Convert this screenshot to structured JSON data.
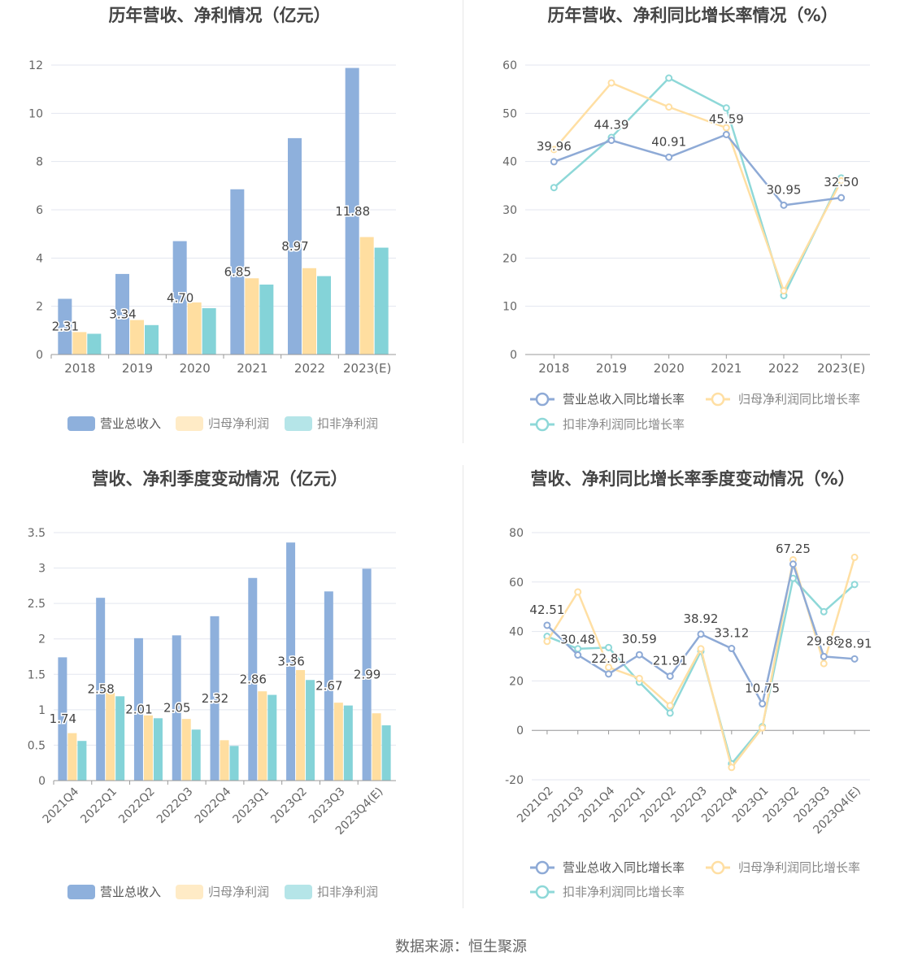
{
  "source_label": "数据来源：恒生聚源",
  "colors": {
    "revenue": "#8eb0dc",
    "net_profit": "#ffdea0",
    "deducted_profit": "#84d3d8"
  },
  "chart_data": [
    {
      "type": "bar",
      "title": "历年营收、净利情况（亿元）",
      "categories": [
        "2018",
        "2019",
        "2020",
        "2021",
        "2022",
        "2023(E)"
      ],
      "ylim": [
        0,
        12
      ],
      "yticks": [
        0,
        2,
        4,
        6,
        8,
        10,
        12
      ],
      "legend_position": "bottom",
      "series": [
        {
          "name": "营业总收入",
          "values": [
            2.31,
            3.34,
            4.7,
            6.85,
            8.97,
            11.88
          ],
          "labels": [
            "2.31",
            "3.34",
            "4.70",
            "6.85",
            "8.97",
            "11.88"
          ]
        },
        {
          "name": "归母净利润",
          "values": [
            0.93,
            1.43,
            2.16,
            3.16,
            3.58,
            4.87
          ]
        },
        {
          "name": "扣非净利润",
          "values": [
            0.86,
            1.22,
            1.92,
            2.9,
            3.25,
            4.43
          ]
        }
      ]
    },
    {
      "type": "line",
      "title": "历年营收、净利同比增长率情况（%）",
      "categories": [
        "2018",
        "2019",
        "2020",
        "2021",
        "2022",
        "2023(E)"
      ],
      "ylim": [
        0,
        60
      ],
      "yticks": [
        0,
        10,
        20,
        30,
        40,
        50,
        60
      ],
      "legend_position": "bottom",
      "series": [
        {
          "name": "营业总收入同比增长率",
          "values": [
            39.96,
            44.39,
            40.91,
            45.59,
            30.95,
            32.5
          ],
          "labels": [
            "39.96",
            "44.39",
            "40.91",
            "45.59",
            "30.95",
            "32.50"
          ]
        },
        {
          "name": "归母净利润同比增长率",
          "values": [
            42.5,
            56.3,
            51.3,
            47.0,
            13.2,
            36.0
          ]
        },
        {
          "name": "扣非净利润同比增长率",
          "values": [
            34.6,
            45.0,
            57.3,
            51.1,
            12.2,
            36.6
          ]
        }
      ]
    },
    {
      "type": "bar",
      "title": "营收、净利季度变动情况（亿元）",
      "categories": [
        "2021Q4",
        "2022Q1",
        "2022Q2",
        "2022Q3",
        "2022Q4",
        "2023Q1",
        "2023Q2",
        "2023Q3",
        "2023Q4(E)"
      ],
      "ylim": [
        0,
        3.5
      ],
      "yticks": [
        0,
        0.5,
        1,
        1.5,
        2,
        2.5,
        3,
        3.5
      ],
      "legend_position": "bottom",
      "series": [
        {
          "name": "营业总收入",
          "values": [
            1.74,
            2.58,
            2.01,
            2.05,
            2.32,
            2.86,
            3.36,
            2.67,
            2.99
          ],
          "labels": [
            "1.74",
            "2.58",
            "2.01",
            "2.05",
            "2.32",
            "2.86",
            "3.36",
            "2.67",
            "2.99"
          ]
        },
        {
          "name": "归母净利润",
          "values": [
            0.67,
            1.24,
            0.92,
            0.87,
            0.57,
            1.26,
            1.56,
            1.1,
            0.95
          ]
        },
        {
          "name": "扣非净利润",
          "values": [
            0.56,
            1.19,
            0.88,
            0.72,
            0.49,
            1.21,
            1.42,
            1.06,
            0.78
          ]
        }
      ]
    },
    {
      "type": "line",
      "title": "营收、净利同比增长率季度变动情况（%）",
      "categories": [
        "2021Q2",
        "2021Q3",
        "2021Q4",
        "2022Q1",
        "2022Q2",
        "2022Q3",
        "2022Q4",
        "2023Q1",
        "2023Q2",
        "2023Q3",
        "2023Q4(E)"
      ],
      "ylim": [
        -20,
        80
      ],
      "yticks": [
        -20,
        0,
        20,
        40,
        60,
        80
      ],
      "legend_position": "bottom",
      "series": [
        {
          "name": "营业总收入同比增长率",
          "values": [
            42.51,
            30.48,
            22.81,
            30.59,
            21.91,
            38.92,
            33.12,
            10.75,
            67.25,
            29.88,
            28.91
          ],
          "labels": [
            "42.51",
            "30.48",
            "22.81",
            "30.59",
            "21.91",
            "38.92",
            "33.12",
            "10.75",
            "67.25",
            "29.88",
            "28.91"
          ]
        },
        {
          "name": "归母净利润同比增长率",
          "values": [
            36.0,
            56.0,
            25.5,
            21.0,
            10.0,
            33.0,
            -15.0,
            1.0,
            69.0,
            27.0,
            70.0
          ]
        },
        {
          "name": "扣非净利润同比增长率",
          "values": [
            38.0,
            33.0,
            33.5,
            19.5,
            7.0,
            32.0,
            -13.5,
            1.5,
            61.5,
            48.0,
            59.0
          ]
        }
      ]
    }
  ]
}
